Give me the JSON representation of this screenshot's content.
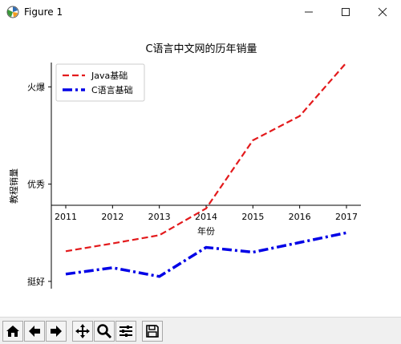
{
  "window": {
    "title": "Figure 1",
    "controls": {
      "minimize_icon": "minimize-icon",
      "maximize_icon": "maximize-icon",
      "close_icon": "close-icon"
    }
  },
  "toolbar": {
    "buttons": [
      "home-icon",
      "back-icon",
      "forward-icon",
      "pan-icon",
      "zoom-icon",
      "configure-subplots-icon",
      "save-icon"
    ]
  },
  "chart_data": {
    "type": "line",
    "title": "C语言中文网的历年销量",
    "xlabel": "年份",
    "ylabel": "教程销量",
    "x": [
      "2011",
      "2012",
      "2013",
      "2014",
      "2015",
      "2016",
      "2017"
    ],
    "ytick_labels": [
      "挺好",
      "优秀",
      "火爆"
    ],
    "ytick_values": [
      10,
      30,
      50
    ],
    "ylim": [
      8.5,
      55
    ],
    "grid": false,
    "legend_position": "upper-left",
    "series": [
      {
        "name": "Java基础",
        "values": [
          16.2,
          17.8,
          19.5,
          25,
          39,
          44,
          55
        ],
        "color": "#e31a1c",
        "style": "dashed"
      },
      {
        "name": "C语言基础",
        "values": [
          11.5,
          12.8,
          11,
          17,
          16,
          18,
          20
        ],
        "color": "#0000e6",
        "style": "dashdot"
      }
    ]
  }
}
